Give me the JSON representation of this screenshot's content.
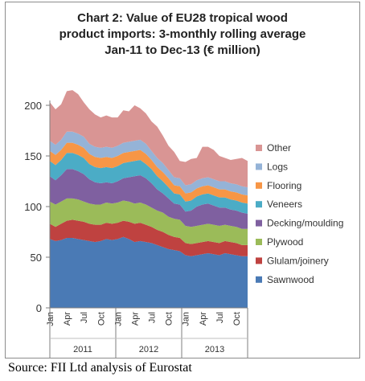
{
  "chart_data": {
    "type": "area",
    "stacked": true,
    "title_lines": [
      "Chart 2: Value of EU28 tropical wood",
      "product imports: 3-monthly rolling average",
      "Jan-11 to Dec-13 (€ million)"
    ],
    "ylim": [
      0,
      200
    ],
    "yticks": [
      "0",
      "50",
      "100",
      "150",
      "200"
    ],
    "month_labels": [
      "Jan",
      "Apr",
      "Jul",
      "Oct",
      "Jan",
      "Apr",
      "Jul",
      "Oct",
      "Jan",
      "Apr",
      "Jul",
      "Oct"
    ],
    "month_label_positions": [
      0,
      3,
      6,
      9,
      12,
      15,
      18,
      21,
      24,
      27,
      30,
      33
    ],
    "years": [
      "2011",
      "2012",
      "2013"
    ],
    "grid": false,
    "legend_position": "right",
    "x": [
      "Jan-11",
      "Feb-11",
      "Mar-11",
      "Apr-11",
      "May-11",
      "Jun-11",
      "Jul-11",
      "Aug-11",
      "Sep-11",
      "Oct-11",
      "Nov-11",
      "Dec-11",
      "Jan-12",
      "Feb-12",
      "Mar-12",
      "Apr-12",
      "May-12",
      "Jun-12",
      "Jul-12",
      "Aug-12",
      "Sep-12",
      "Oct-12",
      "Nov-12",
      "Dec-12",
      "Jan-13",
      "Feb-13",
      "Mar-13",
      "Apr-13",
      "May-13",
      "Jun-13",
      "Jul-13",
      "Aug-13",
      "Sep-13",
      "Oct-13",
      "Nov-13",
      "Dec-13"
    ],
    "series": [
      {
        "name": "Sawnwood",
        "color": "#4a7ab5",
        "values": [
          68,
          66,
          67,
          69,
          69,
          68,
          67,
          66,
          65,
          66,
          68,
          67,
          68,
          70,
          68,
          65,
          66,
          65,
          64,
          62,
          60,
          58,
          57,
          56,
          52,
          51,
          52,
          53,
          54,
          53,
          52,
          54,
          53,
          52,
          51,
          51
        ]
      },
      {
        "name": "Glulam/joinery",
        "color": "#bf4240",
        "values": [
          15,
          14,
          16,
          17,
          18,
          18,
          18,
          17,
          17,
          16,
          16,
          16,
          16,
          16,
          17,
          18,
          18,
          17,
          16,
          15,
          15,
          14,
          13,
          13,
          12,
          12,
          12,
          12,
          12,
          12,
          12,
          12,
          12,
          12,
          11,
          11
        ]
      },
      {
        "name": "Plywood",
        "color": "#9bbb59",
        "values": [
          22,
          22,
          22,
          22,
          21,
          21,
          20,
          20,
          20,
          20,
          20,
          20,
          20,
          20,
          20,
          20,
          20,
          20,
          19,
          19,
          19,
          18,
          18,
          18,
          17,
          17,
          17,
          17,
          17,
          17,
          17,
          16,
          16,
          16,
          16,
          16
        ]
      },
      {
        "name": "Decking/moulding",
        "color": "#7f60a0",
        "values": [
          25,
          24,
          26,
          29,
          29,
          28,
          27,
          24,
          22,
          21,
          20,
          20,
          21,
          22,
          24,
          27,
          27,
          26,
          24,
          21,
          19,
          18,
          15,
          15,
          14,
          16,
          19,
          20,
          20,
          19,
          18,
          17,
          16,
          16,
          16,
          15
        ]
      },
      {
        "name": "Veneers",
        "color": "#4bacc6",
        "values": [
          15,
          15,
          15,
          16,
          16,
          16,
          16,
          15,
          15,
          15,
          15,
          15,
          15,
          15,
          15,
          15,
          15,
          14,
          14,
          13,
          12,
          11,
          10,
          10,
          10,
          10,
          10,
          10,
          10,
          10,
          10,
          10,
          10,
          10,
          10,
          10
        ]
      },
      {
        "name": "Flooring",
        "color": "#f79646",
        "values": [
          10,
          10,
          10,
          10,
          10,
          10,
          10,
          10,
          10,
          10,
          10,
          10,
          10,
          10,
          10,
          10,
          10,
          10,
          9,
          9,
          9,
          9,
          8,
          8,
          8,
          8,
          8,
          8,
          8,
          8,
          8,
          8,
          8,
          8,
          8,
          8
        ]
      },
      {
        "name": "Logs",
        "color": "#95b3d7",
        "values": [
          10,
          10,
          10,
          11,
          11,
          11,
          11,
          10,
          10,
          10,
          10,
          10,
          10,
          10,
          10,
          10,
          10,
          10,
          9,
          9,
          9,
          8,
          8,
          8,
          8,
          8,
          8,
          8,
          8,
          8,
          8,
          8,
          8,
          8,
          8,
          8
        ]
      },
      {
        "name": "Other",
        "color": "#d99594",
        "values": [
          38,
          35,
          35,
          40,
          41,
          39,
          34,
          34,
          32,
          30,
          31,
          30,
          28,
          32,
          30,
          35,
          31,
          30,
          29,
          31,
          27,
          24,
          25,
          17,
          23,
          25,
          22,
          31,
          30,
          29,
          25,
          23,
          23,
          25,
          28,
          26
        ]
      }
    ]
  },
  "source_text": "Source: FII Ltd analysis of Eurostat"
}
